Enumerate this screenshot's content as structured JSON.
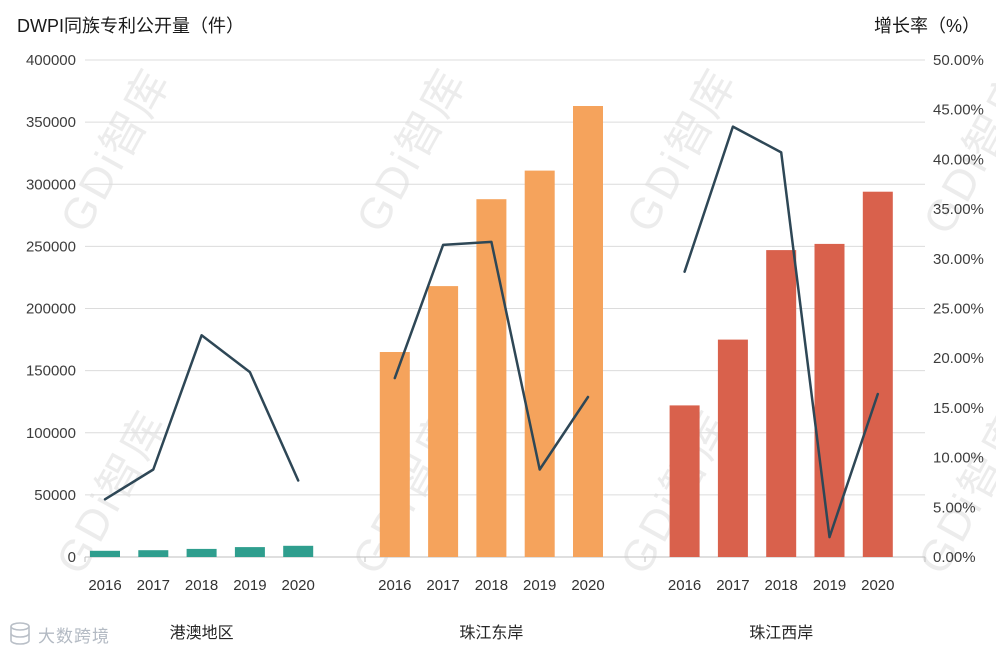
{
  "watermark": {
    "text": "GDi智库"
  },
  "footer": {
    "logo_text": "大数跨境"
  },
  "chart_data": {
    "type": "bar+line",
    "left_axis": {
      "title": "DWPI同族专利公开量（件）",
      "min": 0,
      "max": 400000,
      "ticks": [
        0,
        50000,
        100000,
        150000,
        200000,
        250000,
        300000,
        350000,
        400000
      ]
    },
    "right_axis": {
      "title": "增长率（%）",
      "min": 0,
      "max": 50,
      "format": "percent2",
      "ticks": [
        0,
        5,
        10,
        15,
        20,
        25,
        30,
        35,
        40,
        45,
        50
      ]
    },
    "years": [
      "2016",
      "2017",
      "2018",
      "2019",
      "2020"
    ],
    "groups": [
      {
        "label": "港澳地区",
        "bar_color": "#2F9E8E",
        "bar_values": [
          5000,
          5500,
          6500,
          8000,
          9000
        ],
        "line_values": [
          5.8,
          8.8,
          22.3,
          18.6,
          7.7
        ]
      },
      {
        "label": "珠江东岸",
        "bar_color": "#F5A35C",
        "bar_values": [
          165000,
          218000,
          288000,
          311000,
          363000
        ],
        "line_values": [
          18.0,
          31.4,
          31.7,
          8.8,
          16.1
        ]
      },
      {
        "label": "珠江西岸",
        "bar_color": "#D9614C",
        "bar_values": [
          122000,
          175000,
          247000,
          252000,
          294000
        ],
        "line_values": [
          28.7,
          43.3,
          40.7,
          2.0,
          16.4
        ]
      }
    ],
    "line_color": "#2E4756",
    "grid_color": "#DCDCDC"
  }
}
